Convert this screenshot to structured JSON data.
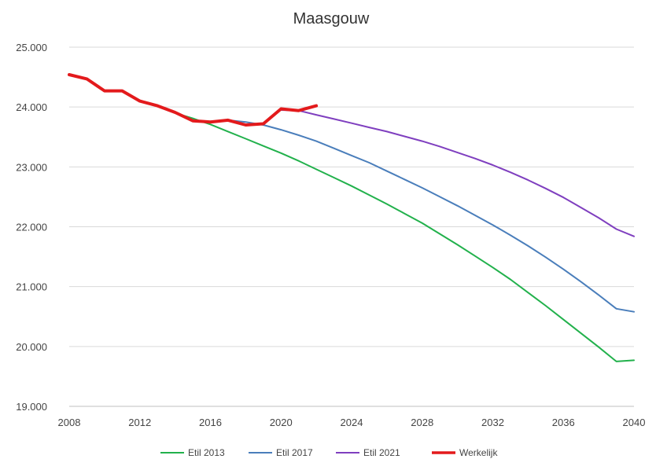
{
  "chart_data": {
    "type": "line",
    "title": "Maasgouw",
    "xlabel": "",
    "ylabel": "",
    "xlim": [
      2008,
      2040
    ],
    "ylim": [
      19000,
      25000
    ],
    "x_ticks": [
      "2008",
      "2012",
      "2016",
      "2020",
      "2024",
      "2028",
      "2032",
      "2036",
      "2040"
    ],
    "y_ticks": [
      "25.000",
      "24.000",
      "23.000",
      "22.000",
      "21.000",
      "20.000",
      "19.000"
    ],
    "grid": true,
    "legend_position": "bottom",
    "series": [
      {
        "name": "Etil 2013",
        "color": "#22b14c",
        "width": 2,
        "points": [
          [
            2013,
            24020
          ],
          [
            2014,
            23900
          ],
          [
            2015,
            23810
          ],
          [
            2016,
            23710
          ],
          [
            2017,
            23590
          ],
          [
            2018,
            23470
          ],
          [
            2019,
            23350
          ],
          [
            2020,
            23230
          ],
          [
            2021,
            23100
          ],
          [
            2022,
            22960
          ],
          [
            2023,
            22820
          ],
          [
            2024,
            22680
          ],
          [
            2025,
            22530
          ],
          [
            2026,
            22380
          ],
          [
            2027,
            22220
          ],
          [
            2028,
            22060
          ],
          [
            2029,
            21880
          ],
          [
            2030,
            21700
          ],
          [
            2031,
            21510
          ],
          [
            2032,
            21320
          ],
          [
            2033,
            21120
          ],
          [
            2034,
            20900
          ],
          [
            2035,
            20680
          ],
          [
            2036,
            20450
          ],
          [
            2037,
            20220
          ],
          [
            2038,
            19990
          ],
          [
            2039,
            19750
          ],
          [
            2040,
            19770
          ]
        ]
      },
      {
        "name": "Etil 2017",
        "color": "#4a7ebb",
        "width": 2,
        "points": [
          [
            2016,
            23760
          ],
          [
            2017,
            23780
          ],
          [
            2018,
            23750
          ],
          [
            2019,
            23700
          ],
          [
            2020,
            23620
          ],
          [
            2021,
            23530
          ],
          [
            2022,
            23430
          ],
          [
            2023,
            23310
          ],
          [
            2024,
            23190
          ],
          [
            2025,
            23070
          ],
          [
            2026,
            22930
          ],
          [
            2027,
            22790
          ],
          [
            2028,
            22650
          ],
          [
            2029,
            22500
          ],
          [
            2030,
            22350
          ],
          [
            2031,
            22190
          ],
          [
            2032,
            22030
          ],
          [
            2033,
            21860
          ],
          [
            2034,
            21680
          ],
          [
            2035,
            21490
          ],
          [
            2036,
            21290
          ],
          [
            2037,
            21080
          ],
          [
            2038,
            20860
          ],
          [
            2039,
            20630
          ],
          [
            2040,
            20580
          ]
        ]
      },
      {
        "name": "Etil 2021",
        "color": "#7f3fbf",
        "width": 2,
        "points": [
          [
            2020,
            23950
          ],
          [
            2021,
            23940
          ],
          [
            2022,
            23870
          ],
          [
            2023,
            23800
          ],
          [
            2024,
            23730
          ],
          [
            2025,
            23660
          ],
          [
            2026,
            23590
          ],
          [
            2027,
            23510
          ],
          [
            2028,
            23430
          ],
          [
            2029,
            23340
          ],
          [
            2030,
            23240
          ],
          [
            2031,
            23140
          ],
          [
            2032,
            23030
          ],
          [
            2033,
            22910
          ],
          [
            2034,
            22780
          ],
          [
            2035,
            22640
          ],
          [
            2036,
            22490
          ],
          [
            2037,
            22320
          ],
          [
            2038,
            22150
          ],
          [
            2039,
            21960
          ],
          [
            2040,
            21840
          ]
        ]
      },
      {
        "name": "Werkelijk",
        "color": "#e31a1c",
        "width": 4,
        "points": [
          [
            2008,
            24540
          ],
          [
            2009,
            24470
          ],
          [
            2010,
            24270
          ],
          [
            2011,
            24270
          ],
          [
            2012,
            24100
          ],
          [
            2013,
            24020
          ],
          [
            2014,
            23910
          ],
          [
            2015,
            23770
          ],
          [
            2016,
            23750
          ],
          [
            2017,
            23780
          ],
          [
            2018,
            23700
          ],
          [
            2019,
            23720
          ],
          [
            2020,
            23970
          ],
          [
            2021,
            23940
          ],
          [
            2022,
            24020
          ]
        ]
      }
    ]
  }
}
